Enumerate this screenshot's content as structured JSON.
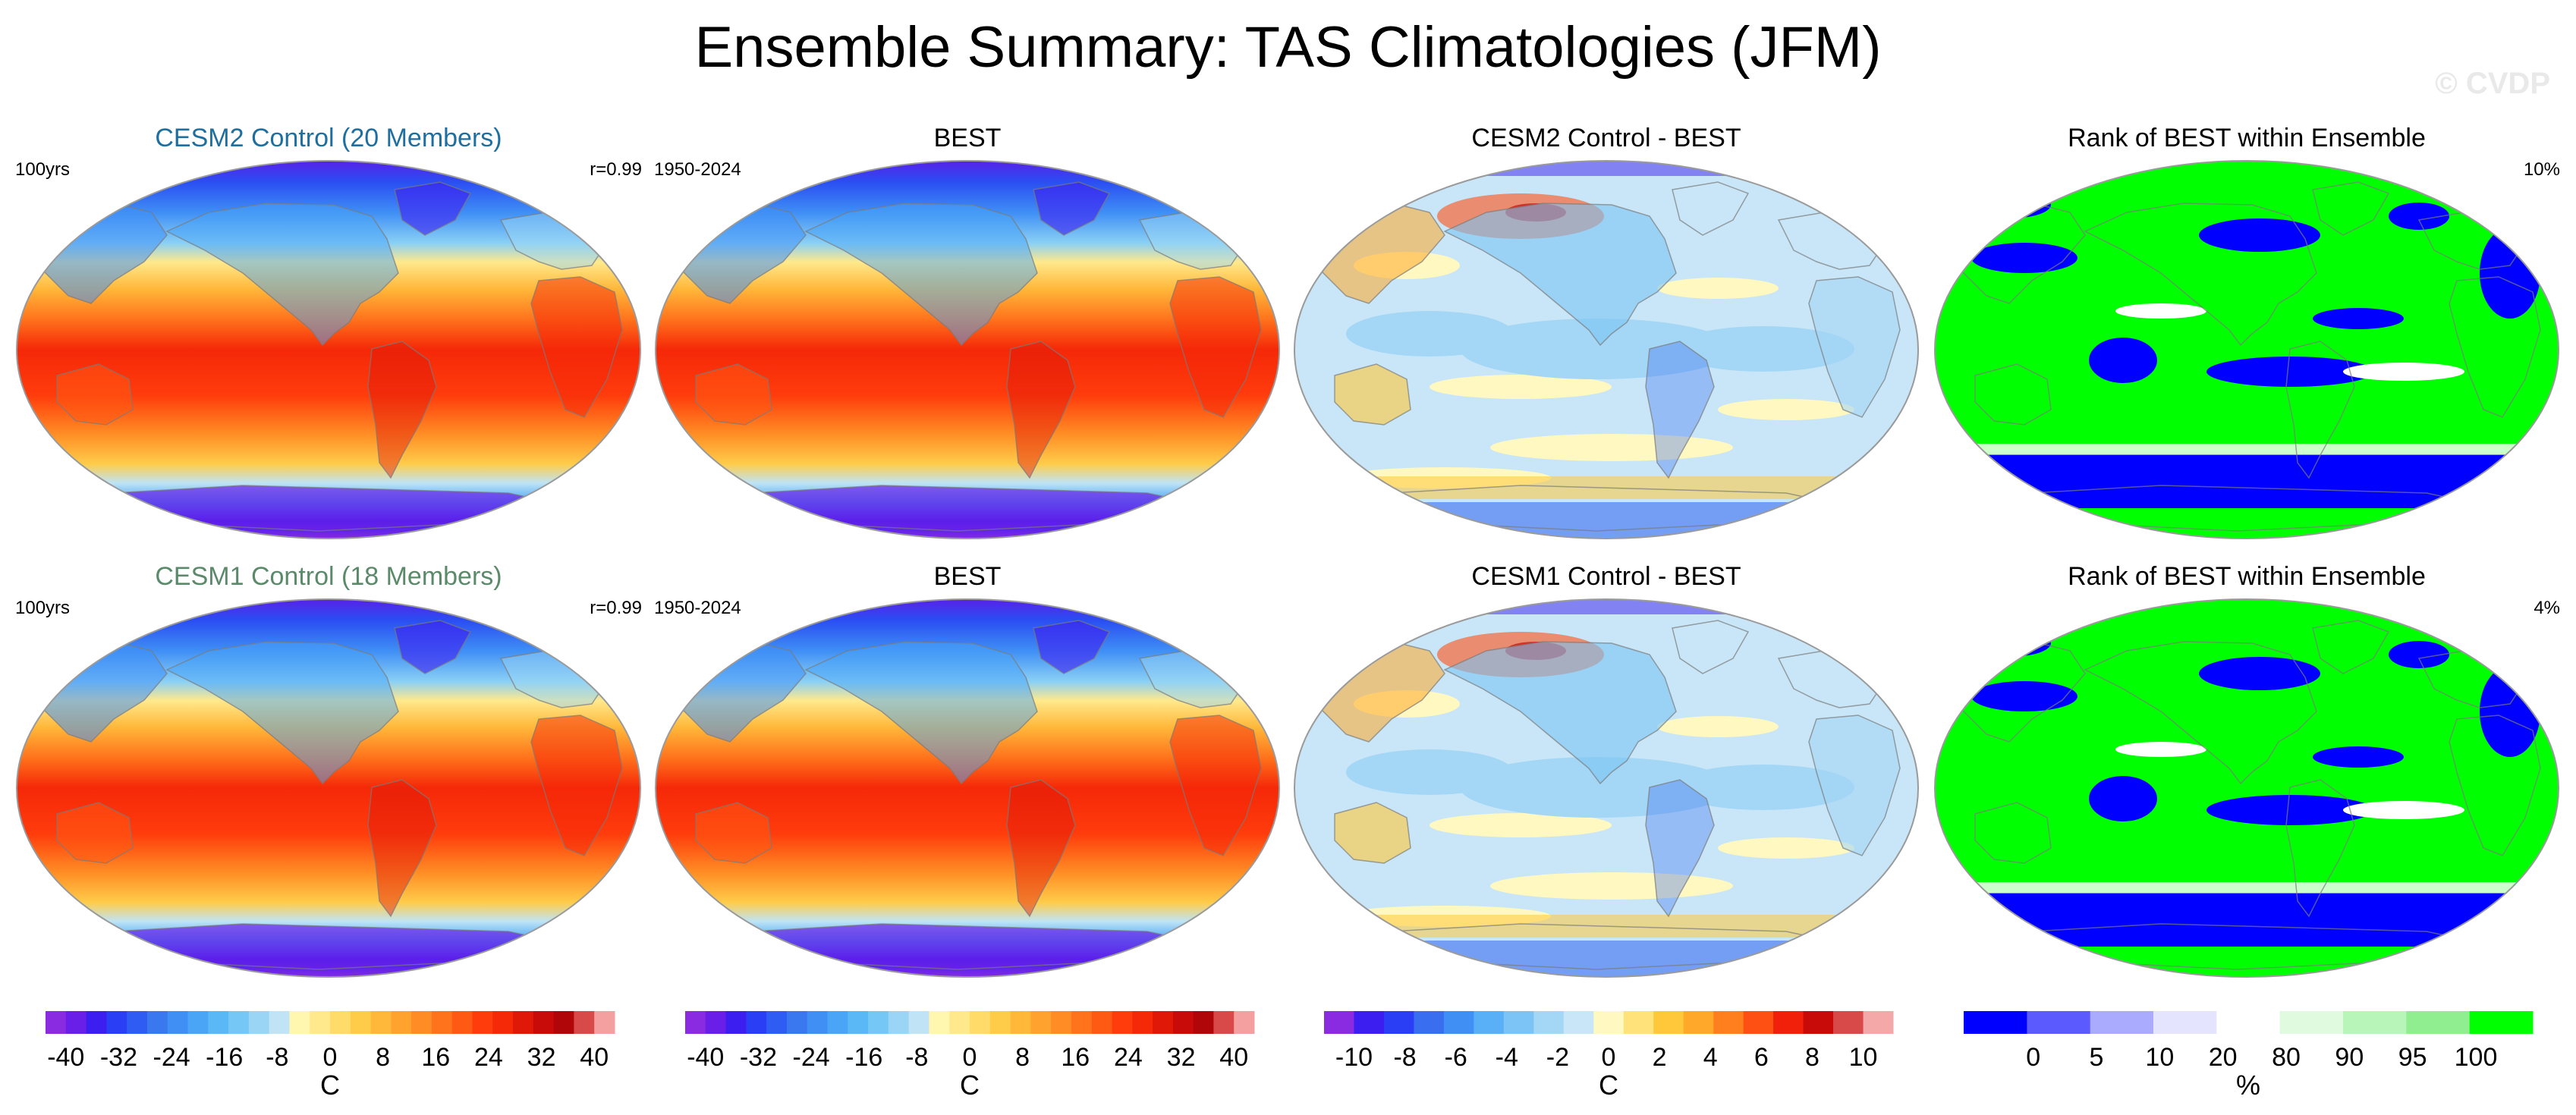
{
  "title": "Ensemble Summary: TAS Climatologies (JFM)",
  "watermark": "© CVDP",
  "panels": [
    {
      "title": "CESM2 Control (20 Members)",
      "title_color": "#1e6fa0",
      "left": "100yrs",
      "right": "r=0.99",
      "style": "clim"
    },
    {
      "title": "BEST",
      "title_color": "#000000",
      "left": "1950-2024",
      "right": "",
      "style": "clim"
    },
    {
      "title": "CESM2 Control - BEST",
      "title_color": "#000000",
      "left": "",
      "right": "",
      "style": "diff"
    },
    {
      "title": "Rank of BEST within Ensemble",
      "title_color": "#000000",
      "left": "",
      "right": "10%",
      "style": "rank"
    },
    {
      "title": "CESM1 Control (18 Members)",
      "title_color": "#5a8a6a",
      "left": "100yrs",
      "right": "r=0.99",
      "style": "clim"
    },
    {
      "title": "BEST",
      "title_color": "#000000",
      "left": "1950-2024",
      "right": "",
      "style": "clim"
    },
    {
      "title": "CESM1 Control - BEST",
      "title_color": "#000000",
      "left": "",
      "right": "",
      "style": "diff"
    },
    {
      "title": "Rank of BEST within Ensemble",
      "title_color": "#000000",
      "left": "",
      "right": "4%",
      "style": "rank"
    }
  ],
  "colorbars": [
    {
      "unit": "C",
      "ticks": [
        "-40",
        "-32",
        "-24",
        "-16",
        "-8",
        "0",
        "8",
        "16",
        "24",
        "32",
        "40"
      ],
      "colors": [
        "#8a2be2",
        "#6a1fe8",
        "#3d1ef0",
        "#2a3ef5",
        "#2f5cf2",
        "#3a78f0",
        "#3f8ff5",
        "#4aa5f7",
        "#5ab8f7",
        "#75c8f5",
        "#9ad5f5",
        "#c0e4f5",
        "#fff6b0",
        "#ffe98c",
        "#ffdc6a",
        "#ffcc4a",
        "#ffb83a",
        "#ffa32e",
        "#ff8c24",
        "#ff731c",
        "#ff5a14",
        "#ff3c0c",
        "#f52808",
        "#e01808",
        "#c80a08",
        "#b0060a",
        "#d84a4a",
        "#f5a0a0"
      ]
    },
    {
      "unit": "C",
      "ticks": [
        "-40",
        "-32",
        "-24",
        "-16",
        "-8",
        "0",
        "8",
        "16",
        "24",
        "32",
        "40"
      ],
      "colors": [
        "#8a2be2",
        "#6a1fe8",
        "#3d1ef0",
        "#2a3ef5",
        "#2f5cf2",
        "#3a78f0",
        "#3f8ff5",
        "#4aa5f7",
        "#5ab8f7",
        "#75c8f5",
        "#9ad5f5",
        "#c0e4f5",
        "#fff6b0",
        "#ffe98c",
        "#ffdc6a",
        "#ffcc4a",
        "#ffb83a",
        "#ffa32e",
        "#ff8c24",
        "#ff731c",
        "#ff5a14",
        "#ff3c0c",
        "#f52808",
        "#e01808",
        "#c80a08",
        "#b0060a",
        "#d84a4a",
        "#f5a0a0"
      ]
    },
    {
      "unit": "C",
      "ticks": [
        "-10",
        "-8",
        "-6",
        "-4",
        "-2",
        "0",
        "2",
        "4",
        "6",
        "8",
        "10"
      ],
      "colors": [
        "#8a2be2",
        "#3d1ef0",
        "#2a3ef5",
        "#3a6ef0",
        "#3f8ff5",
        "#5ab0f7",
        "#7cc4f5",
        "#a4d6f5",
        "#c8e6f7",
        "#fff8c0",
        "#ffe27a",
        "#ffc83a",
        "#ffa82a",
        "#ff7f1e",
        "#ff5014",
        "#f0200a",
        "#c80a08",
        "#d84a4a",
        "#f5a8a8"
      ]
    },
    {
      "unit": "%",
      "ticks": [
        "0",
        "5",
        "10",
        "20",
        "80",
        "90",
        "95",
        "100"
      ],
      "colors": [
        "#0000ff",
        "#5a5aff",
        "#aaaaff",
        "#e4e4ff",
        "#ffffff",
        "#e0fae0",
        "#b8f5b8",
        "#90ee90",
        "#00ff00"
      ]
    }
  ],
  "chart_data": {
    "type": "heatmap",
    "title": "Ensemble Summary: TAS Climatologies (JFM)",
    "variable": "TAS",
    "season": "JFM",
    "rows": [
      {
        "model": "CESM2 Control (20 Members)",
        "model_years": "100yrs",
        "pattern_correlation": 0.99,
        "observations": "BEST",
        "obs_period": "1950-2024",
        "difference_panel": "CESM2 Control - BEST",
        "rank_panel": "Rank of BEST within Ensemble",
        "rank_outside_pct": 10
      },
      {
        "model": "CESM1 Control (18 Members)",
        "model_years": "100yrs",
        "pattern_correlation": 0.99,
        "observations": "BEST",
        "obs_period": "1950-2024",
        "difference_panel": "CESM1 Control - BEST",
        "rank_panel": "Rank of BEST within Ensemble",
        "rank_outside_pct": 4
      }
    ],
    "colorbar_climatology": {
      "unit": "C",
      "range": [
        -40,
        40
      ],
      "ticks": [
        -40,
        -32,
        -24,
        -16,
        -8,
        0,
        8,
        16,
        24,
        32,
        40
      ]
    },
    "colorbar_difference": {
      "unit": "C",
      "range": [
        -10,
        10
      ],
      "ticks": [
        -10,
        -8,
        -6,
        -4,
        -2,
        0,
        2,
        4,
        6,
        8,
        10
      ]
    },
    "colorbar_rank": {
      "unit": "%",
      "ticks": [
        0,
        5,
        10,
        20,
        80,
        90,
        95,
        100
      ]
    }
  }
}
